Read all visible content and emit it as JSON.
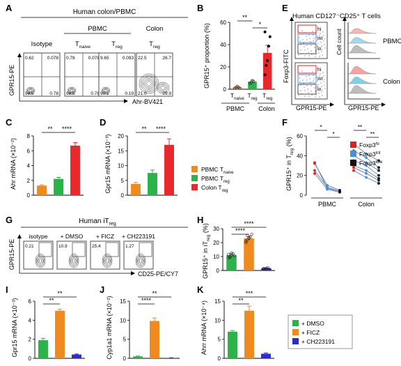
{
  "panels": {
    "A": "A",
    "B": "B",
    "C": "C",
    "D": "D",
    "E": "E",
    "F": "F",
    "G": "G",
    "H": "H",
    "I": "I",
    "J": "J",
    "K": "K"
  },
  "panelA": {
    "title": "Human colon/PBMC",
    "group_pbmc": "PBMC",
    "group_colon": "Colon",
    "ylabel": "GPR15-PE",
    "xlabel": "Ahr-BV421",
    "plots": [
      {
        "name": "Isotype",
        "sub": "",
        "q": [
          "0.62",
          "0.078",
          "98.5",
          "0.78"
        ]
      },
      {
        "name": "T",
        "sub": "naive",
        "q": [
          "0.78",
          "0.078",
          "98.5",
          "0.78"
        ]
      },
      {
        "name": "T",
        "sub": "reg",
        "q": [
          "9.65",
          "0.093",
          "90.1",
          "0.19"
        ]
      },
      {
        "name": "T",
        "sub": "reg",
        "q": [
          "22.5",
          "26.7",
          "21.0",
          "29.9"
        ]
      }
    ]
  },
  "panelB": {
    "ylabel": "GPR15⁺ proportion (%)",
    "yticks": [
      "0",
      "20",
      "40",
      "60"
    ],
    "sig": [
      "**",
      "*"
    ],
    "xcats": [
      {
        "t": "T",
        "s": "naive"
      },
      {
        "t": "T",
        "s": "reg"
      },
      {
        "t": "T",
        "s": "reg"
      }
    ],
    "groups": [
      "PBMC",
      "Colon"
    ]
  },
  "panelE": {
    "title": "Human CD127⁻CD25⁺ T cells",
    "ylabel": "Foxp3-FITC",
    "xlabel": "GPR15-PE",
    "hist_y": "Cell count",
    "gates": [
      "hi",
      "int",
      "lo"
    ],
    "rows": [
      "PBMC",
      "Colon"
    ]
  },
  "panelC": {
    "ylabel": "Ahr mRNA (×10⁻²)",
    "yticks": [
      "0",
      "2",
      "4",
      "6",
      "8"
    ],
    "sig": [
      "**",
      "****"
    ]
  },
  "panelD": {
    "ylabel": "Gpr15 mRNA (×10⁻³)",
    "yticks": [
      "0",
      "5",
      "10",
      "15",
      "20"
    ],
    "sig": [
      "**",
      "****"
    ]
  },
  "legendCD": [
    {
      "t": "PBMC T",
      "s": "naive",
      "color": "#ef8a1f"
    },
    {
      "t": "PBMC T",
      "s": "reg",
      "color": "#2bb34a"
    },
    {
      "t": "Colon T",
      "s": "reg",
      "color": "#e8282b"
    }
  ],
  "panelF": {
    "ylabel": "GPR15⁺ in T",
    "ylabel_sub": "reg",
    "ylabel_tail": " (%)",
    "yticks": [
      "0",
      "20",
      "40",
      "60"
    ],
    "groups": [
      "PBMC",
      "Colon"
    ],
    "sig": [
      "*",
      "*",
      "**",
      "**"
    ],
    "legend": [
      {
        "t": "Foxp3",
        "s": "hi",
        "color": "#e02020"
      },
      {
        "t": "Foxp3",
        "s": "int",
        "color": "#4a90d9"
      },
      {
        "t": "Foxp3",
        "s": "low",
        "color": "#111111"
      }
    ]
  },
  "panelG": {
    "title": "Human iT",
    "title_sub": "reg",
    "ylabel": "GPR15-PE",
    "xlabel": "CD25-PE/CY7",
    "plots": [
      {
        "name": "isotype",
        "v": "0.21"
      },
      {
        "name": "+ DMSO",
        "v": "10.9"
      },
      {
        "name": "+ FICZ",
        "v": "25.4"
      },
      {
        "name": "+ CH223191",
        "v": "1.27"
      }
    ]
  },
  "panelH": {
    "ylabel": "GPR15⁺ in iT",
    "ylabel_sub": "reg",
    "ylabel_tail": " (%)",
    "yticks": [
      "0",
      "10",
      "20",
      "30"
    ],
    "sig": [
      "****",
      "****"
    ]
  },
  "panelI": {
    "ylabel": "Gpr15 mRNA (×10⁻³)",
    "yticks": [
      "0",
      "2",
      "4",
      "6"
    ],
    "sig": [
      "**",
      "**"
    ]
  },
  "panelJ": {
    "ylabel": "Cyp1a1 mRNA (×10⁻²)",
    "yticks": [
      "0",
      "5",
      "10",
      "15"
    ],
    "sig": [
      "****",
      "**"
    ]
  },
  "panelK": {
    "ylabel": "Ahrr mRNA (×10⁻⁴)",
    "yticks": [
      "0",
      "5",
      "10",
      "15"
    ],
    "sig": [
      "**",
      "***"
    ]
  },
  "legendIK": [
    {
      "label": "+ DMSO",
      "color": "#2bb34a"
    },
    {
      "label": "+ FICZ",
      "color": "#ef8a1f"
    },
    {
      "label": "+ CH223191",
      "color": "#2a2ad6"
    }
  ],
  "chart_data": [
    {
      "panel": "B",
      "type": "bar",
      "categories": [
        "PBMC Tnaive",
        "PBMC Treg",
        "Colon Treg"
      ],
      "values": [
        2,
        8,
        38
      ],
      "errors": [
        1,
        1.5,
        8
      ],
      "colors": [
        "#ef8a1f",
        "#2bb34a",
        "#e8282b"
      ],
      "ylim": [
        0,
        70
      ],
      "points": [
        [
          1,
          2,
          3,
          2,
          1
        ],
        [
          6,
          7,
          9,
          8
        ],
        [
          15,
          25,
          30,
          45,
          55,
          60
        ]
      ]
    },
    {
      "panel": "C",
      "type": "bar",
      "categories": [
        "PBMC Tnaive",
        "PBMC Treg",
        "Colon Treg"
      ],
      "values": [
        1.3,
        2.2,
        6.7
      ],
      "errors": [
        0.1,
        0.2,
        0.4
      ],
      "colors": [
        "#ef8a1f",
        "#2bb34a",
        "#e8282b"
      ],
      "ylim": [
        0,
        8
      ]
    },
    {
      "panel": "D",
      "type": "bar",
      "categories": [
        "PBMC Tnaive",
        "PBMC Treg",
        "Colon Treg"
      ],
      "values": [
        3.8,
        7.5,
        17
      ],
      "errors": [
        0.5,
        1,
        2
      ],
      "colors": [
        "#ef8a1f",
        "#2bb34a",
        "#e8282b"
      ],
      "ylim": [
        0,
        20
      ]
    },
    {
      "panel": "H",
      "type": "bar",
      "categories": [
        "DMSO",
        "FICZ",
        "CH223191"
      ],
      "values": [
        11,
        23,
        1.5
      ],
      "errors": [
        1,
        1.5,
        0.3
      ],
      "colors": [
        "#2bb34a",
        "#ef8a1f",
        "#2a2ad6"
      ],
      "ylim": [
        0,
        30
      ],
      "points": [
        [
          9,
          10,
          11,
          12,
          10.5,
          11.5,
          9.5,
          12.5
        ],
        [
          20,
          22,
          23,
          24,
          26,
          21,
          25,
          23.5
        ],
        [
          0.8,
          1.2,
          1.6,
          2.0,
          1.0,
          1.4
        ]
      ]
    },
    {
      "panel": "I",
      "type": "bar",
      "categories": [
        "DMSO",
        "FICZ",
        "CH223191"
      ],
      "values": [
        1.9,
        5.0,
        0.4
      ],
      "errors": [
        0.2,
        0.15,
        0.05
      ],
      "colors": [
        "#2bb34a",
        "#ef8a1f",
        "#2a2ad6"
      ],
      "ylim": [
        0,
        6
      ]
    },
    {
      "panel": "J",
      "type": "bar",
      "categories": [
        "DMSO",
        "FICZ",
        "CH223191"
      ],
      "values": [
        0.5,
        9.8,
        0.1
      ],
      "errors": [
        0.1,
        0.8,
        0.05
      ],
      "colors": [
        "#2bb34a",
        "#ef8a1f",
        "#2a2ad6"
      ],
      "ylim": [
        0,
        15
      ]
    },
    {
      "panel": "K",
      "type": "bar",
      "categories": [
        "DMSO",
        "FICZ",
        "CH223191"
      ],
      "values": [
        7.0,
        12.5,
        1.2
      ],
      "errors": [
        0.3,
        1.2,
        0.2
      ],
      "colors": [
        "#2bb34a",
        "#ef8a1f",
        "#2a2ad6"
      ],
      "ylim": [
        0,
        15
      ]
    },
    {
      "panel": "F",
      "type": "line",
      "groups": [
        "PBMC",
        "Colon"
      ],
      "ylim": [
        0,
        60
      ],
      "pbmc": {
        "hi": [
          32,
          25,
          22,
          33
        ],
        "int": [
          10,
          8,
          6,
          7
        ],
        "low": [
          5,
          4,
          3,
          4
        ]
      },
      "colon": {
        "hi": [
          52,
          45,
          40,
          35,
          30,
          28,
          25
        ],
        "int": [
          42,
          38,
          33,
          30,
          25,
          22,
          18
        ],
        "low": [
          35,
          28,
          25,
          20,
          17,
          15,
          12
        ]
      }
    }
  ]
}
